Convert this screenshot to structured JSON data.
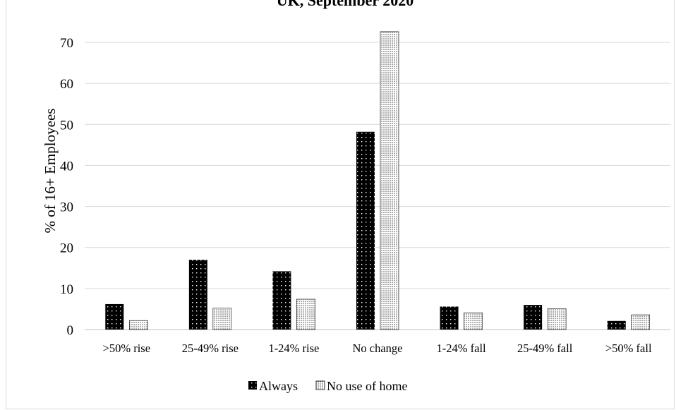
{
  "chart_data": {
    "type": "bar",
    "title": "UK, September 2020",
    "xlabel": "",
    "ylabel": "% of 16+ Employees",
    "ylim": [
      0,
      75
    ],
    "yticks": [
      0,
      10,
      20,
      30,
      40,
      50,
      60,
      70
    ],
    "grid": true,
    "legend_position": "bottom",
    "categories": [
      ">50% rise",
      "25-49% rise",
      "1-24% rise",
      "No change",
      "1-24% fall",
      "25-49% fall",
      ">50% fall"
    ],
    "series": [
      {
        "name": "Always",
        "pattern": "dark-dotted",
        "color": "#000000",
        "values": [
          6.2,
          17.0,
          14.2,
          48.2,
          5.6,
          6.0,
          2.1
        ]
      },
      {
        "name": "No use of home",
        "pattern": "light-dotted",
        "color": "#ffffff",
        "values": [
          2.2,
          5.2,
          7.4,
          72.6,
          4.1,
          5.1,
          3.6
        ]
      }
    ]
  }
}
